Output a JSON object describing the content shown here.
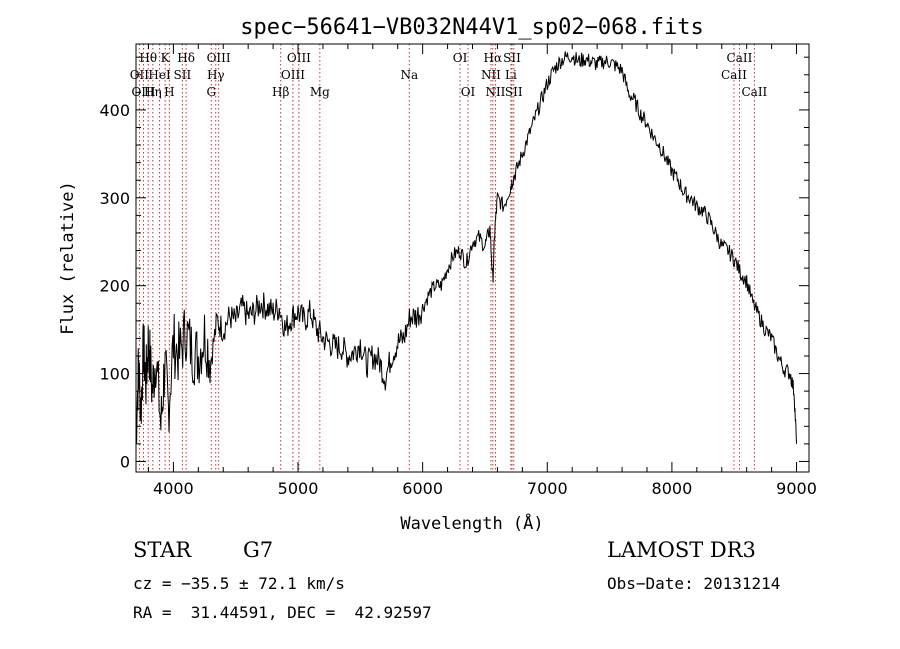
{
  "chart_data": {
    "type": "line",
    "title": "spec−56641−VB032N44V1_sp02−068.fits",
    "xlabel": "Wavelength (Å)",
    "ylabel": "Flux (relative)",
    "xlim": [
      3700,
      9100
    ],
    "ylim": [
      -12,
      475
    ],
    "xticks": [
      4000,
      5000,
      6000,
      7000,
      8000,
      9000
    ],
    "yticks": [
      0,
      100,
      200,
      300,
      400
    ],
    "series": [
      {
        "name": "flux",
        "x": [
          3700,
          3720,
          3740,
          3760,
          3780,
          3800,
          3830,
          3860,
          3900,
          3930,
          3960,
          4000,
          4050,
          4100,
          4150,
          4200,
          4250,
          4300,
          4350,
          4400,
          4450,
          4500,
          4550,
          4600,
          4650,
          4700,
          4750,
          4800,
          4850,
          4900,
          4950,
          5000,
          5050,
          5100,
          5150,
          5200,
          5250,
          5300,
          5350,
          5400,
          5450,
          5500,
          5550,
          5600,
          5650,
          5700,
          5750,
          5800,
          5850,
          5900,
          5950,
          6000,
          6050,
          6100,
          6150,
          6200,
          6250,
          6300,
          6350,
          6400,
          6450,
          6500,
          6540,
          6563,
          6580,
          6600,
          6650,
          6700,
          6720,
          6750,
          6800,
          6850,
          6900,
          6950,
          7000,
          7050,
          7100,
          7150,
          7200,
          7250,
          7300,
          7350,
          7400,
          7450,
          7500,
          7550,
          7600,
          7650,
          7700,
          7750,
          7800,
          7850,
          7900,
          7950,
          8000,
          8050,
          8100,
          8150,
          8200,
          8250,
          8300,
          8350,
          8400,
          8450,
          8500,
          8550,
          8600,
          8650,
          8700,
          8750,
          8800,
          8850,
          8900,
          8950,
          8980,
          9000
        ],
        "values": [
          30,
          110,
          60,
          130,
          90,
          140,
          80,
          120,
          40,
          110,
          60,
          135,
          120,
          150,
          125,
          120,
          145,
          115,
          160,
          150,
          165,
          160,
          175,
          165,
          170,
          180,
          175,
          170,
          175,
          150,
          165,
          170,
          160,
          170,
          150,
          140,
          135,
          130,
          130,
          120,
          125,
          135,
          110,
          120,
          115,
          95,
          120,
          135,
          140,
          165,
          165,
          175,
          190,
          200,
          200,
          220,
          235,
          240,
          225,
          250,
          255,
          245,
          265,
          205,
          265,
          300,
          290,
          310,
          320,
          330,
          350,
          370,
          390,
          410,
          430,
          445,
          455,
          460,
          462,
          455,
          458,
          455,
          452,
          455,
          455,
          450,
          445,
          420,
          410,
          395,
          385,
          370,
          360,
          345,
          330,
          320,
          305,
          300,
          290,
          285,
          275,
          260,
          245,
          240,
          230,
          215,
          205,
          180,
          165,
          150,
          140,
          120,
          105,
          100,
          80,
          20
        ]
      }
    ],
    "emission_lines": [
      {
        "label": "Hθ",
        "wl": 3798,
        "row": 0
      },
      {
        "label": "OII",
        "wl": 3727,
        "row": 1
      },
      {
        "label": "OIII",
        "wl": 3760,
        "row": 2
      },
      {
        "label": "K",
        "wl": 3934,
        "row": 0
      },
      {
        "label": "HeI",
        "wl": 3889,
        "row": 1
      },
      {
        "label": "Hη",
        "wl": 3835,
        "row": 2
      },
      {
        "label": "H",
        "wl": 3968,
        "row": 2
      },
      {
        "label": "Hδ",
        "wl": 4102,
        "row": 0
      },
      {
        "label": "SII",
        "wl": 4072,
        "row": 1
      },
      {
        "label": "OIII",
        "wl": 4363,
        "row": 0
      },
      {
        "label": "Hγ",
        "wl": 4340,
        "row": 1
      },
      {
        "label": "G",
        "wl": 4304,
        "row": 2
      },
      {
        "label": "Hβ",
        "wl": 4861,
        "row": 2
      },
      {
        "label": "OIII",
        "wl": 5007,
        "row": 0
      },
      {
        "label": "OIII",
        "wl": 4959,
        "row": 1
      },
      {
        "label": "Mg",
        "wl": 5175,
        "row": 2
      },
      {
        "label": "Na",
        "wl": 5893,
        "row": 1
      },
      {
        "label": "OI",
        "wl": 6300,
        "row": 0
      },
      {
        "label": "OI",
        "wl": 6364,
        "row": 2
      },
      {
        "label": "Hα",
        "wl": 6563,
        "row": 0
      },
      {
        "label": "NII",
        "wl": 6548,
        "row": 1
      },
      {
        "label": "NII",
        "wl": 6584,
        "row": 2
      },
      {
        "label": "SII",
        "wl": 6717,
        "row": 0
      },
      {
        "label": "Li",
        "wl": 6708,
        "row": 1
      },
      {
        "label": "SII",
        "wl": 6731,
        "row": 2
      },
      {
        "label": "CaII",
        "wl": 8542,
        "row": 0
      },
      {
        "label": "CaII",
        "wl": 8498,
        "row": 1
      },
      {
        "label": "CaII",
        "wl": 8662,
        "row": 2
      }
    ],
    "colors": {
      "line": "#000000",
      "marker": "#c83232"
    }
  },
  "info": {
    "object_type": "STAR",
    "subclass": "G7",
    "cz": "cz = −35.5 ± 72.1 km/s",
    "coords": "RA =  31.44591, DEC =  42.92597",
    "survey": "LAMOST DR3",
    "obs_date": "Obs−Date: 20131214"
  }
}
